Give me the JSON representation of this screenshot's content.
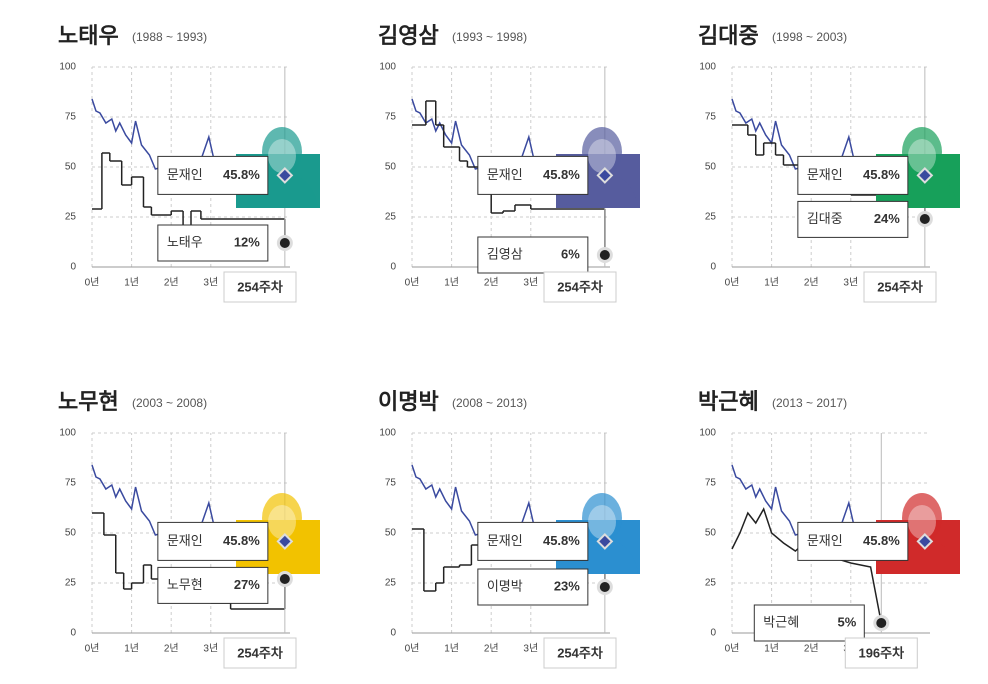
{
  "chart_data": [
    {
      "type": "line",
      "title": "노태우",
      "subtitle": "(1988 ~ 1993)",
      "xlim": [
        0,
        5
      ],
      "ylim": [
        0,
        100
      ],
      "yticks": [
        0,
        25,
        50,
        75,
        100
      ],
      "xticks": [
        {
          "value": 0,
          "label": "0년"
        },
        {
          "value": 1,
          "label": "1년"
        },
        {
          "value": 2,
          "label": "2년"
        },
        {
          "value": 3,
          "label": "3년"
        }
      ],
      "grid": true,
      "photo_color": "#1a9a8e",
      "annotation": "254주차",
      "series": [
        {
          "name": "문재인",
          "color": "#3a4a9f",
          "step": false,
          "x": [
            0,
            0.1,
            0.2,
            0.35,
            0.5,
            0.6,
            0.7,
            0.85,
            1.0,
            1.1,
            1.25,
            1.45,
            1.6,
            1.8,
            2.0,
            2.3,
            2.6,
            2.95,
            3.1,
            3.4,
            3.7,
            4.0,
            4.4,
            4.87
          ],
          "values": [
            84,
            78,
            77,
            72,
            74,
            68,
            72,
            66,
            62,
            73,
            61,
            56,
            49,
            50,
            47,
            46,
            45,
            65,
            52,
            46,
            42,
            40,
            44,
            45.8
          ],
          "value_labels": [
            null,
            null,
            null,
            null,
            null,
            null,
            null,
            null,
            null,
            null,
            null,
            null,
            null,
            null,
            null,
            null,
            null,
            null,
            null,
            null,
            null,
            null,
            null,
            "45.8%"
          ]
        },
        {
          "name": "노태우",
          "color": "#222222",
          "step": true,
          "x": [
            0,
            0.25,
            0.45,
            0.75,
            1.0,
            1.3,
            1.5,
            2.0,
            2.3,
            2.5,
            2.75,
            4.87
          ],
          "values": [
            29,
            57,
            53,
            41,
            45,
            30,
            26,
            28,
            17,
            28,
            24,
            12
          ],
          "value_labels": [
            null,
            null,
            null,
            null,
            null,
            null,
            null,
            null,
            null,
            null,
            null,
            "12%"
          ]
        }
      ]
    },
    {
      "type": "line",
      "title": "김영삼",
      "subtitle": "(1993 ~ 1998)",
      "xlim": [
        0,
        5
      ],
      "ylim": [
        0,
        100
      ],
      "yticks": [
        0,
        25,
        50,
        75,
        100
      ],
      "xticks": [
        {
          "value": 0,
          "label": "0년"
        },
        {
          "value": 1,
          "label": "1년"
        },
        {
          "value": 2,
          "label": "2년"
        },
        {
          "value": 3,
          "label": "3년"
        }
      ],
      "grid": true,
      "photo_color": "#565c9e",
      "annotation": "254주차",
      "series": [
        {
          "name": "문재인",
          "color": "#3a4a9f",
          "step": false,
          "x": [
            0,
            0.1,
            0.2,
            0.35,
            0.5,
            0.6,
            0.7,
            0.85,
            1.0,
            1.1,
            1.25,
            1.45,
            1.6,
            1.8,
            2.0,
            2.3,
            2.6,
            2.95,
            3.1,
            3.4,
            3.7,
            4.0,
            4.4,
            4.87
          ],
          "values": [
            84,
            78,
            77,
            72,
            74,
            68,
            72,
            66,
            62,
            73,
            61,
            56,
            49,
            50,
            47,
            46,
            45,
            65,
            52,
            46,
            42,
            40,
            44,
            45.8
          ],
          "value_labels": [
            null,
            null,
            null,
            null,
            null,
            null,
            null,
            null,
            null,
            null,
            null,
            null,
            null,
            null,
            null,
            null,
            null,
            null,
            null,
            null,
            null,
            null,
            null,
            "45.8%"
          ]
        },
        {
          "name": "김영삼",
          "color": "#222222",
          "step": true,
          "x": [
            0,
            0.35,
            0.6,
            0.8,
            1.2,
            1.4,
            1.8,
            2.0,
            2.3,
            2.6,
            3.0,
            4.87
          ],
          "values": [
            71,
            83,
            71,
            60,
            53,
            50,
            40,
            27,
            28,
            31,
            29,
            6
          ],
          "value_labels": [
            null,
            null,
            null,
            null,
            null,
            null,
            null,
            null,
            null,
            null,
            null,
            "6%"
          ]
        }
      ]
    },
    {
      "type": "line",
      "title": "김대중",
      "subtitle": "(1998 ~ 2003)",
      "xlim": [
        0,
        5
      ],
      "ylim": [
        0,
        100
      ],
      "yticks": [
        0,
        25,
        50,
        75,
        100
      ],
      "xticks": [
        {
          "value": 0,
          "label": "0년"
        },
        {
          "value": 1,
          "label": "1년"
        },
        {
          "value": 2,
          "label": "2년"
        },
        {
          "value": 3,
          "label": "3년"
        }
      ],
      "grid": true,
      "photo_color": "#17a05a",
      "annotation": "254주차",
      "series": [
        {
          "name": "문재인",
          "color": "#3a4a9f",
          "step": false,
          "x": [
            0,
            0.1,
            0.2,
            0.35,
            0.5,
            0.6,
            0.7,
            0.85,
            1.0,
            1.1,
            1.25,
            1.45,
            1.6,
            1.8,
            2.0,
            2.3,
            2.6,
            2.95,
            3.1,
            3.4,
            3.7,
            4.0,
            4.4,
            4.87
          ],
          "values": [
            84,
            78,
            77,
            72,
            74,
            68,
            72,
            66,
            62,
            73,
            61,
            56,
            49,
            50,
            47,
            46,
            45,
            65,
            52,
            46,
            42,
            40,
            44,
            45.8
          ],
          "value_labels": [
            null,
            null,
            null,
            null,
            null,
            null,
            null,
            null,
            null,
            null,
            null,
            null,
            null,
            null,
            null,
            null,
            null,
            null,
            null,
            null,
            null,
            null,
            null,
            "45.8%"
          ]
        },
        {
          "name": "김대중",
          "color": "#222222",
          "step": true,
          "x": [
            0,
            0.4,
            0.6,
            0.8,
            1.1,
            1.3,
            1.7,
            2.2,
            2.6,
            3.0,
            4.87
          ],
          "values": [
            71,
            66,
            56,
            62,
            56,
            51,
            46,
            50,
            42,
            36,
            24
          ],
          "value_labels": [
            null,
            null,
            null,
            null,
            null,
            null,
            null,
            null,
            null,
            null,
            "24%"
          ]
        }
      ]
    },
    {
      "type": "line",
      "title": "노무현",
      "subtitle": "(2003 ~ 2008)",
      "xlim": [
        0,
        5
      ],
      "ylim": [
        0,
        100
      ],
      "yticks": [
        0,
        25,
        50,
        75,
        100
      ],
      "xticks": [
        {
          "value": 0,
          "label": "0년"
        },
        {
          "value": 1,
          "label": "1년"
        },
        {
          "value": 2,
          "label": "2년"
        },
        {
          "value": 3,
          "label": "3년"
        }
      ],
      "grid": true,
      "photo_color": "#f2c200",
      "annotation": "254주차",
      "series": [
        {
          "name": "문재인",
          "color": "#3a4a9f",
          "step": false,
          "x": [
            0,
            0.1,
            0.2,
            0.35,
            0.5,
            0.6,
            0.7,
            0.85,
            1.0,
            1.1,
            1.25,
            1.45,
            1.6,
            1.8,
            2.0,
            2.3,
            2.6,
            2.95,
            3.1,
            3.4,
            3.7,
            4.0,
            4.4,
            4.87
          ],
          "values": [
            84,
            78,
            77,
            72,
            74,
            68,
            72,
            66,
            62,
            73,
            61,
            56,
            49,
            50,
            47,
            46,
            45,
            65,
            52,
            46,
            42,
            40,
            44,
            45.8
          ],
          "value_labels": [
            null,
            null,
            null,
            null,
            null,
            null,
            null,
            null,
            null,
            null,
            null,
            null,
            null,
            null,
            null,
            null,
            null,
            null,
            null,
            null,
            null,
            null,
            null,
            "45.8%"
          ]
        },
        {
          "name": "노무현",
          "color": "#222222",
          "step": true,
          "x": [
            0,
            0.3,
            0.6,
            0.8,
            1.0,
            1.3,
            1.5,
            1.9,
            2.2,
            3.0,
            3.5,
            4.87
          ],
          "values": [
            60,
            49,
            30,
            22,
            25,
            34,
            27,
            23,
            28,
            15,
            12,
            27
          ],
          "value_labels": [
            null,
            null,
            null,
            null,
            null,
            null,
            null,
            null,
            null,
            null,
            null,
            "27%"
          ]
        }
      ]
    },
    {
      "type": "line",
      "title": "이명박",
      "subtitle": "(2008 ~ 2013)",
      "xlim": [
        0,
        5
      ],
      "ylim": [
        0,
        100
      ],
      "yticks": [
        0,
        25,
        50,
        75,
        100
      ],
      "xticks": [
        {
          "value": 0,
          "label": "0년"
        },
        {
          "value": 1,
          "label": "1년"
        },
        {
          "value": 2,
          "label": "2년"
        },
        {
          "value": 3,
          "label": "3년"
        }
      ],
      "grid": true,
      "photo_color": "#2b8fd0",
      "annotation": "254주차",
      "series": [
        {
          "name": "문재인",
          "color": "#3a4a9f",
          "step": false,
          "x": [
            0,
            0.1,
            0.2,
            0.35,
            0.5,
            0.6,
            0.7,
            0.85,
            1.0,
            1.1,
            1.25,
            1.45,
            1.6,
            1.8,
            2.0,
            2.3,
            2.6,
            2.95,
            3.1,
            3.4,
            3.7,
            4.0,
            4.4,
            4.87
          ],
          "values": [
            84,
            78,
            77,
            72,
            74,
            68,
            72,
            66,
            62,
            73,
            61,
            56,
            49,
            50,
            47,
            46,
            45,
            65,
            52,
            46,
            42,
            40,
            44,
            45.8
          ],
          "value_labels": [
            null,
            null,
            null,
            null,
            null,
            null,
            null,
            null,
            null,
            null,
            null,
            null,
            null,
            null,
            null,
            null,
            null,
            null,
            null,
            null,
            null,
            null,
            null,
            "45.8%"
          ]
        },
        {
          "name": "이명박",
          "color": "#222222",
          "step": true,
          "x": [
            0,
            0.3,
            0.6,
            0.8,
            1.2,
            1.5,
            1.9,
            2.2,
            3.0,
            4.87
          ],
          "values": [
            52,
            21,
            25,
            33,
            34,
            44,
            48,
            50,
            40,
            23
          ],
          "value_labels": [
            null,
            null,
            null,
            null,
            null,
            null,
            null,
            null,
            null,
            "23%"
          ]
        }
      ]
    },
    {
      "type": "line",
      "title": "박근혜",
      "subtitle": "(2013 ~ 2017)",
      "xlim": [
        0,
        5
      ],
      "ylim": [
        0,
        100
      ],
      "yticks": [
        0,
        25,
        50,
        75,
        100
      ],
      "xticks": [
        {
          "value": 0,
          "label": "0년"
        },
        {
          "value": 1,
          "label": "1년"
        },
        {
          "value": 2,
          "label": "2년"
        },
        {
          "value": 3,
          "label": "3년"
        }
      ],
      "grid": true,
      "photo_color": "#d02a2a",
      "annotation": "196주차",
      "series": [
        {
          "name": "문재인",
          "color": "#3a4a9f",
          "step": false,
          "x": [
            0,
            0.1,
            0.2,
            0.35,
            0.5,
            0.6,
            0.7,
            0.85,
            1.0,
            1.1,
            1.25,
            1.45,
            1.6,
            1.8,
            2.0,
            2.3,
            2.6,
            2.95,
            3.1,
            3.4,
            3.7,
            4.0,
            4.4,
            4.87
          ],
          "values": [
            84,
            78,
            77,
            72,
            74,
            68,
            72,
            66,
            62,
            73,
            61,
            56,
            49,
            50,
            47,
            46,
            45,
            65,
            52,
            46,
            42,
            40,
            44,
            45.8
          ],
          "value_labels": [
            null,
            null,
            null,
            null,
            null,
            null,
            null,
            null,
            null,
            null,
            null,
            null,
            null,
            null,
            null,
            null,
            null,
            null,
            null,
            null,
            null,
            null,
            null,
            "45.8%"
          ]
        },
        {
          "name": "박근혜",
          "color": "#222222",
          "step": false,
          "x": [
            0,
            0.2,
            0.4,
            0.6,
            0.8,
            1.0,
            1.3,
            1.6,
            2.0,
            2.5,
            3.0,
            3.5,
            3.77
          ],
          "values": [
            42,
            50,
            60,
            55,
            62,
            50,
            45,
            41,
            48,
            38,
            35,
            33,
            5
          ],
          "value_labels": [
            null,
            null,
            null,
            null,
            null,
            null,
            null,
            null,
            null,
            null,
            null,
            null,
            "5%"
          ]
        }
      ]
    }
  ]
}
